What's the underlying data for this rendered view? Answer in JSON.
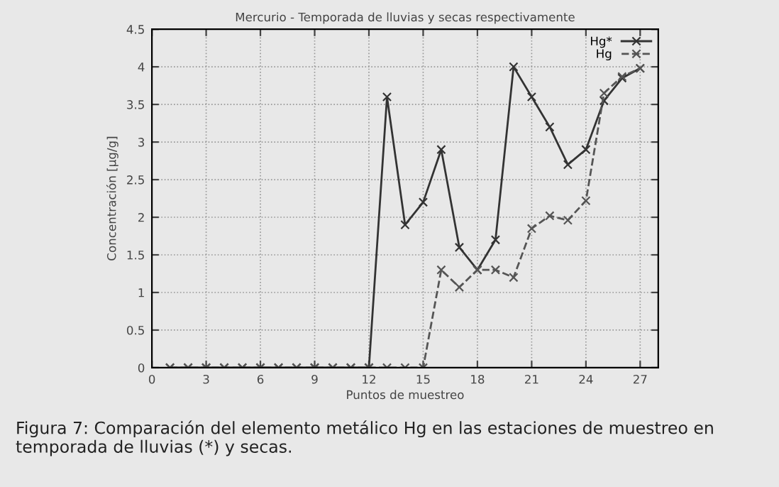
{
  "chart_data": {
    "type": "line",
    "title": "Mercurio - Temporada de lluvias y secas respectivamente",
    "xlabel": "Puntos de muestreo",
    "ylabel": "Concentración [µg/g]",
    "x": [
      1,
      2,
      3,
      4,
      5,
      6,
      7,
      8,
      9,
      10,
      11,
      12,
      13,
      14,
      15,
      16,
      17,
      18,
      19,
      20,
      21,
      22,
      23,
      24,
      25,
      26,
      27
    ],
    "series": [
      {
        "name": "Hg*",
        "color": "#333333",
        "line_style": "solid",
        "values": [
          0,
          0,
          0,
          0,
          0,
          0,
          0,
          0,
          0,
          0,
          0,
          0,
          3.6,
          1.9,
          2.2,
          2.9,
          1.6,
          1.3,
          1.7,
          4.0,
          3.6,
          3.2,
          2.7,
          2.9,
          3.55,
          3.85,
          3.98
        ]
      },
      {
        "name": "Hg",
        "color": "#555555",
        "line_style": "dashed",
        "values": [
          0,
          0,
          0,
          0,
          0,
          0,
          0,
          0,
          0,
          0,
          0,
          0,
          0,
          0,
          0,
          1.3,
          1.07,
          1.3,
          1.3,
          1.2,
          1.85,
          2.02,
          1.96,
          2.22,
          3.65,
          3.87,
          3.98
        ]
      }
    ],
    "xlim": [
      0,
      28
    ],
    "xticks": [
      0,
      3,
      6,
      9,
      12,
      15,
      18,
      21,
      24,
      27
    ],
    "ylim": [
      0,
      4.5
    ],
    "yticks": [
      0,
      0.5,
      1,
      1.5,
      2,
      2.5,
      3,
      3.5,
      4,
      4.5
    ],
    "grid": true,
    "legend": "top right",
    "marker": "cross",
    "annotations": [
      "Figura 7: Comparación del elemento metálico Hg en las estaciones de muestreo en temporada de lluvias (*) y secas."
    ]
  }
}
